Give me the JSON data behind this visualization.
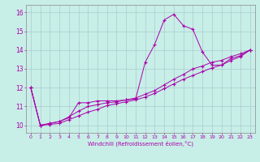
{
  "xlabel": "Windchill (Refroidissement éolien,°C)",
  "background_color": "#c8eee8",
  "grid_color": "#aacccc",
  "line_color": "#aa00aa",
  "xlim": [
    -0.5,
    23.5
  ],
  "ylim": [
    9.6,
    16.4
  ],
  "xticks": [
    0,
    1,
    2,
    3,
    4,
    5,
    6,
    7,
    8,
    9,
    10,
    11,
    12,
    13,
    14,
    15,
    16,
    17,
    18,
    19,
    20,
    21,
    22,
    23
  ],
  "yticks": [
    10,
    11,
    12,
    13,
    14,
    15,
    16
  ],
  "series": [
    {
      "x": [
        0,
        1,
        2,
        3,
        4,
        5,
        6,
        7,
        8,
        9,
        10,
        11,
        12,
        13,
        14,
        15,
        16,
        17,
        18,
        19,
        20,
        21,
        22,
        23
      ],
      "y": [
        12.0,
        10.0,
        10.1,
        10.2,
        10.4,
        11.2,
        11.2,
        11.3,
        11.3,
        11.3,
        11.35,
        11.4,
        13.35,
        14.3,
        15.6,
        15.9,
        15.3,
        15.1,
        13.9,
        13.2,
        13.2,
        13.55,
        13.7,
        14.0
      ]
    },
    {
      "x": [
        0,
        1,
        2,
        3,
        4,
        5,
        6,
        7,
        8,
        9,
        10,
        11,
        12,
        13,
        14,
        15,
        16,
        17,
        18,
        19,
        20,
        21,
        22,
        23
      ],
      "y": [
        12.0,
        10.0,
        10.1,
        10.2,
        10.45,
        10.75,
        11.0,
        11.1,
        11.2,
        11.25,
        11.35,
        11.45,
        11.65,
        11.85,
        12.15,
        12.45,
        12.7,
        13.0,
        13.15,
        13.35,
        13.45,
        13.65,
        13.8,
        14.0
      ]
    },
    {
      "x": [
        0,
        1,
        2,
        3,
        4,
        5,
        6,
        7,
        8,
        9,
        10,
        11,
        12,
        13,
        14,
        15,
        16,
        17,
        18,
        19,
        20,
        21,
        22,
        23
      ],
      "y": [
        12.0,
        10.0,
        10.05,
        10.1,
        10.3,
        10.5,
        10.7,
        10.85,
        11.05,
        11.15,
        11.25,
        11.35,
        11.5,
        11.7,
        11.95,
        12.2,
        12.45,
        12.65,
        12.85,
        13.05,
        13.2,
        13.45,
        13.65,
        14.0
      ]
    }
  ]
}
